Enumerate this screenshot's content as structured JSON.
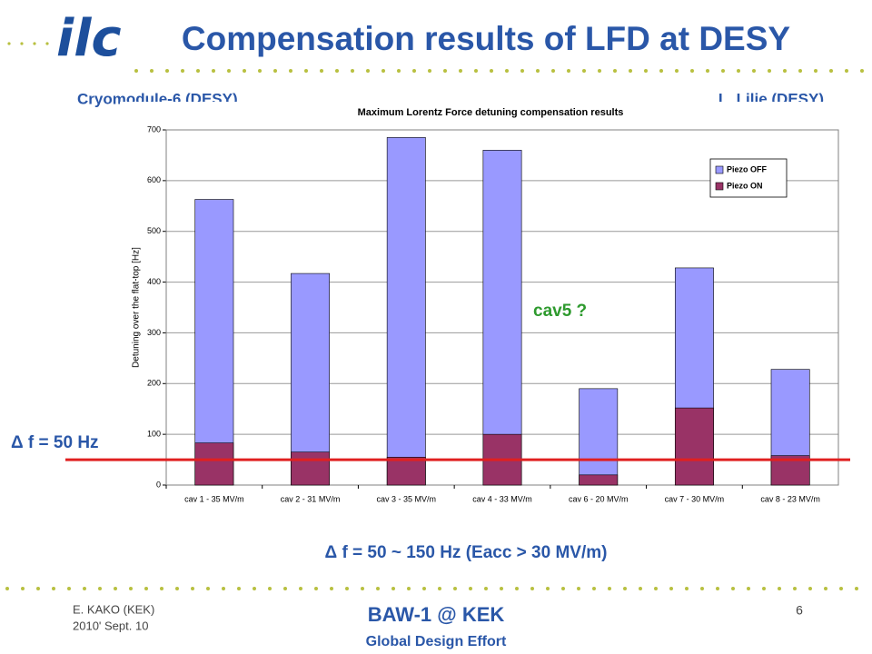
{
  "logo": "ilc",
  "title": "Compensation results of LFD at DESY",
  "left_note": "Cryomodule-6 (DESY)",
  "right_note": "L. Lilje (DESY)",
  "annotation_cav5": "cav5 ?",
  "annotation_line": "Δ f = 50 Hz",
  "summary": "Δ f = 50 ~ 150 Hz  (Eacc > 30 MV/m)",
  "footer": {
    "author": "E. KAKO (KEK)",
    "date": "2010' Sept. 10",
    "event": "BAW-1 @ KEK",
    "org": "Global Design Effort",
    "page": "6"
  },
  "chart_data": {
    "type": "bar",
    "title": "Maximum Lorentz Force detuning compensation results",
    "y_label": "Detuning over the flat-top [Hz]",
    "categories": [
      "cav 1 - 35 MV/m",
      "cav 2 - 31 MV/m",
      "cav 3 - 35 MV/m",
      "cav 4 - 33 MV/m",
      "cav 6 - 20 MV/m",
      "cav 7 - 30 MV/m",
      "cav 8 - 23 MV/m"
    ],
    "series": [
      {
        "name": "Piezo OFF",
        "color": "#9999ff",
        "values": [
          563,
          417,
          685,
          660,
          190,
          428,
          228
        ]
      },
      {
        "name": "Piezo ON",
        "color": "#993366",
        "values": [
          83,
          65,
          55,
          100,
          20,
          152,
          58
        ]
      }
    ],
    "ylim": [
      0,
      700
    ],
    "yticks": [
      0,
      100,
      200,
      300,
      400,
      500,
      600,
      700
    ],
    "grid": true,
    "legend": "upper right",
    "reference_line": {
      "value": 50,
      "color": "#e02020"
    }
  }
}
